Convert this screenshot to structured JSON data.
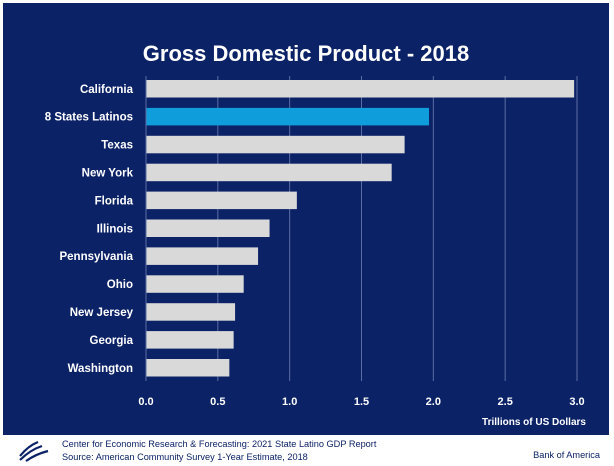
{
  "chart_data": {
    "type": "bar",
    "orientation": "horizontal",
    "title": "Gross Domestic Product - 2018",
    "xlabel": "Trillions of US Dollars",
    "xlim": [
      0,
      3.0
    ],
    "xticks": [
      "0.0",
      "0.5",
      "1.0",
      "1.5",
      "2.0",
      "2.5",
      "3.0"
    ],
    "grid": true,
    "categories": [
      "California",
      "8 States Latinos",
      "Texas",
      "New York",
      "Florida",
      "Illinois",
      "Pennsylvania",
      "Ohio",
      "New Jersey",
      "Georgia",
      "Washington"
    ],
    "values": [
      2.98,
      1.97,
      1.8,
      1.71,
      1.05,
      0.86,
      0.78,
      0.68,
      0.62,
      0.61,
      0.58
    ],
    "highlight_category": "8 States Latinos",
    "colors": {
      "bar": "#d9d9d9",
      "highlight": "#109ddb",
      "background": "#0c2267",
      "grid": "#5a6ea3",
      "text": "#ffffff"
    }
  },
  "footer": {
    "note_line1": "Center for Economic Research & Forecasting: 2021 State Latino GDP Report",
    "note_line2": "Source: American Community Survey 1-Year Estimate, 2018",
    "brand": "Bank of America",
    "logo_icon": "bank-of-america-flag-icon"
  }
}
